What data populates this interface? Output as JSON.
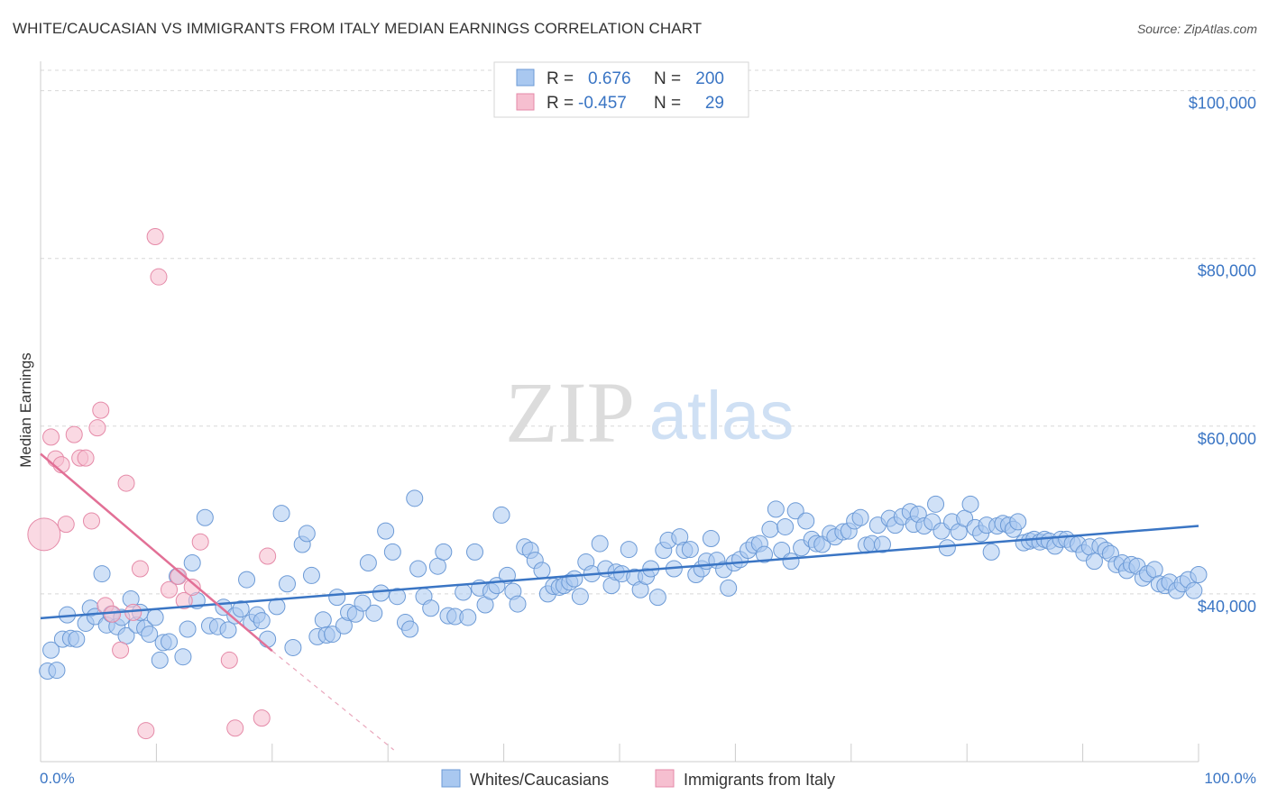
{
  "title": "WHITE/CAUCASIAN VS IMMIGRANTS FROM ITALY MEDIAN EARNINGS CORRELATION CHART",
  "source": "Source: ZipAtlas.com",
  "watermark": {
    "zip": "ZIP",
    "atlas": "atlas"
  },
  "colors": {
    "blue": "#3a75c4",
    "blue_fill": "#a9c8f0",
    "pink": "#e27096",
    "pink_fill": "#f6bfd0",
    "grid": "#d8d8d8"
  },
  "legend": {
    "rows": [
      {
        "r_label": "R =",
        "r_value": "0.676",
        "n_label": "N =",
        "n_value": "200"
      },
      {
        "r_label": "R =",
        "r_value": "-0.457",
        "n_label": "N =",
        "n_value": "29"
      }
    ]
  },
  "chart_data": {
    "type": "scatter",
    "title": "WHITE/CAUCASIAN VS IMMIGRANTS FROM ITALY MEDIAN EARNINGS CORRELATION CHART",
    "xlabel": "",
    "ylabel": "Median Earnings",
    "xlim": [
      0,
      100
    ],
    "ylim": [
      20000,
      102000
    ],
    "x_tick_labels": [
      "0.0%",
      "100.0%"
    ],
    "y_ticks": [
      40000,
      60000,
      80000,
      100000
    ],
    "y_tick_labels": [
      "$40,000",
      "$60,000",
      "$80,000",
      "$100,000"
    ],
    "grid": true,
    "legend_position": "top-center",
    "series": [
      {
        "name": "Whites/Caucasians",
        "color": "#3a75c4",
        "trend": {
          "x": [
            0,
            100
          ],
          "y": [
            37100,
            48100
          ]
        },
        "points": [
          [
            0.6,
            30800
          ],
          [
            0.9,
            33300
          ],
          [
            1.4,
            30900
          ],
          [
            1.9,
            34600
          ],
          [
            2.3,
            37500
          ],
          [
            2.6,
            34700
          ],
          [
            3.1,
            34600
          ],
          [
            3.9,
            36500
          ],
          [
            4.3,
            38300
          ],
          [
            4.7,
            37300
          ],
          [
            5.3,
            42400
          ],
          [
            5.7,
            36300
          ],
          [
            6.1,
            37600
          ],
          [
            6.6,
            36100
          ],
          [
            7.0,
            37200
          ],
          [
            7.4,
            35000
          ],
          [
            7.8,
            39400
          ],
          [
            8.3,
            36300
          ],
          [
            8.6,
            37800
          ],
          [
            9.0,
            35900
          ],
          [
            9.4,
            35200
          ],
          [
            9.9,
            37200
          ],
          [
            10.3,
            32100
          ],
          [
            10.6,
            34200
          ],
          [
            11.1,
            34300
          ],
          [
            11.8,
            42100
          ],
          [
            12.3,
            32500
          ],
          [
            12.7,
            35800
          ],
          [
            13.1,
            43700
          ],
          [
            13.5,
            39200
          ],
          [
            14.2,
            49100
          ],
          [
            14.6,
            36200
          ],
          [
            15.3,
            36100
          ],
          [
            15.8,
            38400
          ],
          [
            16.2,
            35700
          ],
          [
            16.8,
            37400
          ],
          [
            17.3,
            38200
          ],
          [
            17.8,
            41700
          ],
          [
            18.2,
            36600
          ],
          [
            18.7,
            37500
          ],
          [
            19.1,
            36800
          ],
          [
            19.6,
            34600
          ],
          [
            20.4,
            38500
          ],
          [
            20.8,
            49600
          ],
          [
            21.3,
            41200
          ],
          [
            21.8,
            33600
          ],
          [
            22.6,
            45900
          ],
          [
            23.0,
            47200
          ],
          [
            23.4,
            42200
          ],
          [
            23.9,
            34900
          ],
          [
            24.4,
            36900
          ],
          [
            24.7,
            35100
          ],
          [
            25.2,
            35200
          ],
          [
            25.6,
            39600
          ],
          [
            26.2,
            36200
          ],
          [
            26.6,
            37800
          ],
          [
            27.2,
            37600
          ],
          [
            27.8,
            38900
          ],
          [
            28.3,
            43700
          ],
          [
            28.8,
            37700
          ],
          [
            29.4,
            40100
          ],
          [
            29.8,
            47500
          ],
          [
            30.4,
            45000
          ],
          [
            30.8,
            39700
          ],
          [
            31.5,
            36600
          ],
          [
            31.9,
            35800
          ],
          [
            32.3,
            51400
          ],
          [
            32.6,
            43000
          ],
          [
            33.1,
            39700
          ],
          [
            33.7,
            38300
          ],
          [
            34.3,
            43300
          ],
          [
            34.8,
            45000
          ],
          [
            35.2,
            37400
          ],
          [
            35.8,
            37300
          ],
          [
            36.5,
            40200
          ],
          [
            36.9,
            37200
          ],
          [
            37.5,
            45000
          ],
          [
            37.9,
            40700
          ],
          [
            38.4,
            38700
          ],
          [
            38.9,
            40300
          ],
          [
            39.4,
            41000
          ],
          [
            39.8,
            49400
          ],
          [
            40.3,
            42200
          ],
          [
            40.8,
            40300
          ],
          [
            41.2,
            38800
          ],
          [
            41.8,
            45600
          ],
          [
            42.3,
            45200
          ],
          [
            42.7,
            44000
          ],
          [
            43.3,
            42800
          ],
          [
            43.8,
            40000
          ],
          [
            44.3,
            40900
          ],
          [
            44.8,
            40800
          ],
          [
            45.2,
            41000
          ],
          [
            45.7,
            41400
          ],
          [
            46.1,
            41800
          ],
          [
            46.6,
            39700
          ],
          [
            47.1,
            43800
          ],
          [
            47.6,
            42400
          ],
          [
            48.3,
            46000
          ],
          [
            48.8,
            43000
          ],
          [
            49.3,
            41000
          ],
          [
            49.7,
            42600
          ],
          [
            50.2,
            42400
          ],
          [
            50.8,
            45300
          ],
          [
            51.3,
            42000
          ],
          [
            51.8,
            40500
          ],
          [
            52.3,
            42100
          ],
          [
            52.7,
            43000
          ],
          [
            53.3,
            39600
          ],
          [
            53.8,
            45200
          ],
          [
            54.2,
            46400
          ],
          [
            54.7,
            43000
          ],
          [
            55.2,
            46800
          ],
          [
            55.6,
            45200
          ],
          [
            56.1,
            45300
          ],
          [
            56.6,
            42300
          ],
          [
            57.1,
            43000
          ],
          [
            57.5,
            43900
          ],
          [
            57.9,
            46600
          ],
          [
            58.4,
            44000
          ],
          [
            59.0,
            42900
          ],
          [
            59.4,
            40700
          ],
          [
            59.9,
            43700
          ],
          [
            60.4,
            44100
          ],
          [
            61.1,
            45200
          ],
          [
            61.6,
            45800
          ],
          [
            62.1,
            46000
          ],
          [
            62.5,
            44700
          ],
          [
            63.0,
            47700
          ],
          [
            63.5,
            50100
          ],
          [
            64.0,
            45200
          ],
          [
            64.3,
            48000
          ],
          [
            64.8,
            43900
          ],
          [
            65.2,
            49900
          ],
          [
            65.7,
            45500
          ],
          [
            66.1,
            48700
          ],
          [
            66.6,
            46500
          ],
          [
            67.0,
            46000
          ],
          [
            67.5,
            45900
          ],
          [
            68.2,
            47200
          ],
          [
            68.6,
            46800
          ],
          [
            69.3,
            47400
          ],
          [
            69.8,
            47500
          ],
          [
            70.3,
            48700
          ],
          [
            70.8,
            49100
          ],
          [
            71.3,
            45800
          ],
          [
            71.8,
            46000
          ],
          [
            72.3,
            48200
          ],
          [
            72.7,
            45900
          ],
          [
            73.3,
            49000
          ],
          [
            73.8,
            48200
          ],
          [
            74.4,
            49200
          ],
          [
            75.1,
            49800
          ],
          [
            75.4,
            48300
          ],
          [
            75.8,
            49500
          ],
          [
            76.3,
            48100
          ],
          [
            77.0,
            48600
          ],
          [
            77.3,
            50700
          ],
          [
            77.8,
            47500
          ],
          [
            78.3,
            45500
          ],
          [
            78.7,
            48600
          ],
          [
            79.3,
            47400
          ],
          [
            79.8,
            49000
          ],
          [
            80.3,
            50700
          ],
          [
            80.7,
            47900
          ],
          [
            81.2,
            47200
          ],
          [
            81.7,
            48200
          ],
          [
            82.1,
            45000
          ],
          [
            82.6,
            48100
          ],
          [
            83.1,
            48400
          ],
          [
            83.6,
            48200
          ],
          [
            84.0,
            47700
          ],
          [
            84.4,
            48600
          ],
          [
            84.9,
            46100
          ],
          [
            85.4,
            46300
          ],
          [
            85.8,
            46500
          ],
          [
            86.3,
            46200
          ],
          [
            86.7,
            46500
          ],
          [
            87.1,
            46300
          ],
          [
            87.6,
            45700
          ],
          [
            88.1,
            46500
          ],
          [
            88.6,
            46500
          ],
          [
            89.1,
            46000
          ],
          [
            89.6,
            45900
          ],
          [
            90.1,
            44900
          ],
          [
            90.6,
            45600
          ],
          [
            91.0,
            43900
          ],
          [
            91.5,
            45700
          ],
          [
            92.0,
            45200
          ],
          [
            92.4,
            44800
          ],
          [
            92.9,
            43500
          ],
          [
            93.4,
            43700
          ],
          [
            93.8,
            42800
          ],
          [
            94.2,
            43500
          ],
          [
            94.7,
            43300
          ],
          [
            95.2,
            41900
          ],
          [
            95.6,
            42400
          ],
          [
            96.2,
            42900
          ],
          [
            96.6,
            41200
          ],
          [
            97.1,
            41000
          ],
          [
            97.5,
            41400
          ],
          [
            98.1,
            40400
          ],
          [
            98.6,
            41200
          ],
          [
            99.1,
            41700
          ],
          [
            99.6,
            40400
          ],
          [
            100.0,
            42300
          ]
        ]
      },
      {
        "name": "Immigrants from Italy",
        "color": "#e27096",
        "trend": {
          "x": [
            0,
            20
          ],
          "y": [
            56700,
            33200
          ]
        },
        "trend_extension": {
          "x": [
            20,
            30.5
          ],
          "y": [
            33200,
            21400
          ]
        },
        "points": [
          [
            0.3,
            47100
          ],
          [
            0.9,
            58700
          ],
          [
            1.3,
            56100
          ],
          [
            1.8,
            55400
          ],
          [
            2.2,
            48300
          ],
          [
            2.9,
            59000
          ],
          [
            3.4,
            56200
          ],
          [
            3.9,
            56200
          ],
          [
            4.4,
            48700
          ],
          [
            4.9,
            59800
          ],
          [
            5.2,
            61900
          ],
          [
            5.6,
            38600
          ],
          [
            6.2,
            37600
          ],
          [
            6.9,
            33300
          ],
          [
            7.4,
            53200
          ],
          [
            8.0,
            37800
          ],
          [
            8.6,
            43000
          ],
          [
            9.1,
            23700
          ],
          [
            9.9,
            82600
          ],
          [
            10.2,
            77800
          ],
          [
            11.1,
            40500
          ],
          [
            11.9,
            42100
          ],
          [
            12.4,
            39200
          ],
          [
            13.1,
            40800
          ],
          [
            13.8,
            46200
          ],
          [
            16.3,
            32100
          ],
          [
            16.8,
            24000
          ],
          [
            19.1,
            25200
          ],
          [
            19.6,
            44500
          ]
        ],
        "large_point_index": 0
      }
    ]
  },
  "bottom_legend": [
    {
      "label": "Whites/Caucasians"
    },
    {
      "label": "Immigrants from Italy"
    }
  ]
}
